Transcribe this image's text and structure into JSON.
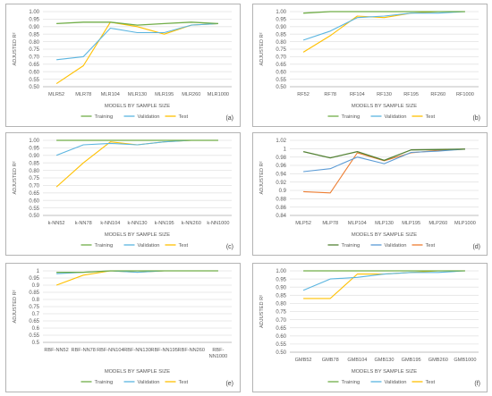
{
  "chart_data": [
    {
      "type": "line",
      "panel_label": "(a)",
      "categories": [
        "MLR52",
        "MLR78",
        "MLR104",
        "MLR130",
        "MLR195",
        "MLR260",
        "MLR1000"
      ],
      "ylabel": "ADJUSTED R²",
      "xlabel": "MODELS BY SAMPLE SIZE",
      "ylim": [
        0.5,
        1.0
      ],
      "yticks": [
        "0.50",
        "0.55",
        "0.60",
        "0.65",
        "0.70",
        "0.75",
        "0.80",
        "0.85",
        "0.90",
        "0.95",
        "1.00"
      ],
      "series": [
        {
          "name": "Training",
          "color": "#70ad47",
          "values": [
            0.92,
            0.93,
            0.93,
            0.91,
            0.92,
            0.93,
            0.92
          ]
        },
        {
          "name": "Validation",
          "color": "#5bb5e0",
          "values": [
            0.68,
            0.7,
            0.89,
            0.86,
            0.86,
            0.91,
            0.92
          ]
        },
        {
          "name": "Test",
          "color": "#ffc000",
          "values": [
            0.52,
            0.64,
            0.93,
            0.9,
            0.85,
            0.91,
            0.92
          ]
        }
      ]
    },
    {
      "type": "line",
      "panel_label": "(b)",
      "categories": [
        "RF52",
        "RF78",
        "RF104",
        "RF130",
        "RF195",
        "RF260",
        "RF1000"
      ],
      "ylabel": "ADJUSTED R²",
      "xlabel": "MODELS BY SAMPLE SIZE",
      "ylim": [
        0.5,
        1.0
      ],
      "yticks": [
        "0.50",
        "0.55",
        "0.60",
        "0.65",
        "0.70",
        "0.75",
        "0.80",
        "0.85",
        "0.90",
        "0.95",
        "1.00"
      ],
      "series": [
        {
          "name": "Training",
          "color": "#70ad47",
          "values": [
            0.99,
            1.0,
            1.0,
            1.0,
            1.0,
            1.0,
            1.0
          ]
        },
        {
          "name": "Validation",
          "color": "#5bb5e0",
          "values": [
            0.81,
            0.87,
            0.96,
            0.97,
            0.99,
            0.99,
            1.0
          ]
        },
        {
          "name": "Test",
          "color": "#ffc000",
          "values": [
            0.73,
            0.84,
            0.97,
            0.96,
            0.99,
            1.0,
            1.0
          ]
        }
      ]
    },
    {
      "type": "line",
      "panel_label": "(c)",
      "categories": [
        "k-NN52",
        "k-NN78",
        "k-NN104",
        "k-NN130",
        "k-NN195",
        "k-NN260",
        "k-NN1000"
      ],
      "ylabel": "ADJUSTED R²",
      "xlabel": "MODELS BY SAMPLE SIZE",
      "ylim": [
        0.5,
        1.0
      ],
      "yticks": [
        "0.50",
        "0.55",
        "0.60",
        "0.65",
        "0.70",
        "0.75",
        "0.80",
        "0.85",
        "0.90",
        "0.95",
        "1.00"
      ],
      "series": [
        {
          "name": "Training",
          "color": "#70ad47",
          "values": [
            1.0,
            1.0,
            1.0,
            1.0,
            1.0,
            1.0,
            1.0
          ]
        },
        {
          "name": "Validation",
          "color": "#5bb5e0",
          "values": [
            0.9,
            0.97,
            0.98,
            0.97,
            0.99,
            1.0,
            1.0
          ]
        },
        {
          "name": "Test",
          "color": "#ffc000",
          "values": [
            0.69,
            0.85,
            0.99,
            0.97,
            0.99,
            1.0,
            1.0
          ]
        }
      ]
    },
    {
      "type": "line",
      "panel_label": "(d)",
      "categories": [
        "MLP52",
        "MLP78",
        "MLP104",
        "MLP130",
        "MLP195",
        "MLP260",
        "MLP1000"
      ],
      "ylabel": "ADJUSTED R²",
      "xlabel": "MODELS BY SAMPLE SIZE",
      "ylim": [
        0.84,
        1.02
      ],
      "yticks": [
        "0.84",
        "0.86",
        "0.88",
        "0.9",
        "0.92",
        "0.94",
        "0.96",
        "0.98",
        "1",
        "1.02"
      ],
      "series": [
        {
          "name": "Training",
          "color": "#548235",
          "values": [
            0.993,
            0.978,
            0.993,
            0.972,
            0.997,
            0.998,
            0.999
          ]
        },
        {
          "name": "Validation",
          "color": "#5b9bd5",
          "values": [
            0.945,
            0.952,
            0.98,
            0.964,
            0.991,
            0.994,
            0.999
          ]
        },
        {
          "name": "Test",
          "color": "#ed7d31",
          "values": [
            0.897,
            0.894,
            0.99,
            0.971,
            0.99,
            0.996,
            0.999
          ]
        }
      ]
    },
    {
      "type": "line",
      "panel_label": "(e)",
      "categories": [
        "RBF-NN52",
        "RBF-NN78",
        "RBF-NN104",
        "RBF-NN130",
        "RBF-NN195",
        "RBF-NN260",
        "RBF-NN1000"
      ],
      "ylabel": "ADJUSTED R²",
      "xlabel": "MODELS BY SAMPLE SIZE",
      "ylim": [
        0.5,
        1.0
      ],
      "yticks": [
        "0.5",
        "0.55",
        "0.6",
        "0.65",
        "0.7",
        "0.75",
        "0.8",
        "0.85",
        "0.9",
        "0.95",
        "1"
      ],
      "series": [
        {
          "name": "Training",
          "color": "#70ad47",
          "values": [
            0.99,
            0.99,
            1.0,
            1.0,
            1.0,
            1.0,
            1.0
          ]
        },
        {
          "name": "Validation",
          "color": "#5bb5e0",
          "values": [
            0.98,
            0.99,
            1.0,
            0.99,
            1.0,
            1.0,
            1.0
          ]
        },
        {
          "name": "Test",
          "color": "#ffc000",
          "values": [
            0.9,
            0.97,
            1.0,
            0.99,
            1.0,
            1.0,
            1.0
          ]
        }
      ]
    },
    {
      "type": "line",
      "panel_label": "(f)",
      "categories": [
        "GMB52",
        "GMB78",
        "GMB104",
        "GMB130",
        "GMB195",
        "GMB260",
        "GMB1000"
      ],
      "ylabel": "ADJUSTED R²",
      "xlabel": "MODELS BY SAMPLE SIZE",
      "ylim": [
        0.5,
        1.0
      ],
      "yticks": [
        "0.50",
        "0.55",
        "0.60",
        "0.65",
        "0.70",
        "0.75",
        "0.80",
        "0.85",
        "0.90",
        "0.95",
        "1.00"
      ],
      "series": [
        {
          "name": "Training",
          "color": "#70ad47",
          "values": [
            1.0,
            1.0,
            1.0,
            1.0,
            1.0,
            1.0,
            1.0
          ]
        },
        {
          "name": "Validation",
          "color": "#5bb5e0",
          "values": [
            0.88,
            0.95,
            0.96,
            0.98,
            0.99,
            0.99,
            1.0
          ]
        },
        {
          "name": "Test",
          "color": "#ffc000",
          "values": [
            0.83,
            0.83,
            0.98,
            0.98,
            0.99,
            1.0,
            1.0
          ]
        }
      ]
    }
  ]
}
